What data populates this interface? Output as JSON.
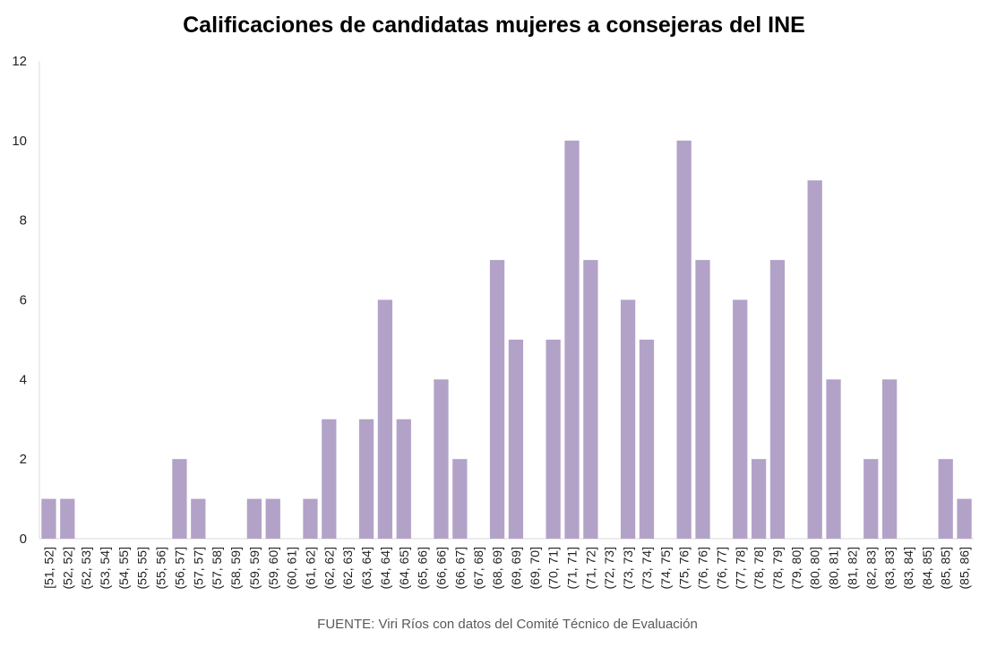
{
  "chart_data": {
    "type": "bar",
    "title": "Calificaciones de candidatas mujeres a consejeras del INE",
    "source": "FUENTE: Viri Ríos con datos del Comité Técnico de Evaluación",
    "xlabel": "",
    "ylabel": "",
    "ylim": [
      0,
      12
    ],
    "yticks": [
      "0",
      "2",
      "4",
      "6",
      "8",
      "10",
      "12"
    ],
    "bar_color": "#b3a2c7",
    "grid": false,
    "categories": [
      "[51, 52]",
      "(52, 52]",
      "(52, 53]",
      "(53, 54]",
      "(54, 55]",
      "(55, 55]",
      "(55, 56]",
      "(56, 57]",
      "(57, 57]",
      "(57, 58]",
      "(58, 59]",
      "(59, 59]",
      "(59, 60]",
      "(60, 61]",
      "(61, 62]",
      "(62, 62]",
      "(62, 63]",
      "(63, 64]",
      "(64, 64]",
      "(64, 65]",
      "(65, 66]",
      "(66, 66]",
      "(66, 67]",
      "(67, 68]",
      "(68, 69]",
      "(69, 69]",
      "(69, 70]",
      "(70, 71]",
      "(71, 71]",
      "(71, 72]",
      "(72, 73]",
      "(73, 73]",
      "(73, 74]",
      "(74, 75]",
      "(75, 76]",
      "(76, 76]",
      "(76, 77]",
      "(77, 78]",
      "(78, 78]",
      "(78, 79]",
      "(79, 80]",
      "(80, 80]",
      "(80, 81]",
      "(81, 82]",
      "(82, 83]",
      "(83, 83]",
      "(83, 84]",
      "(84, 85]",
      "(85, 85]",
      "(85, 86]"
    ],
    "values": [
      1,
      1,
      0,
      0,
      0,
      0,
      0,
      2,
      1,
      0,
      0,
      1,
      1,
      0,
      1,
      3,
      0,
      3,
      6,
      3,
      0,
      4,
      2,
      0,
      7,
      5,
      0,
      5,
      10,
      7,
      0,
      6,
      5,
      0,
      10,
      7,
      0,
      6,
      2,
      7,
      0,
      9,
      4,
      0,
      2,
      4,
      0,
      0,
      2,
      1
    ]
  }
}
